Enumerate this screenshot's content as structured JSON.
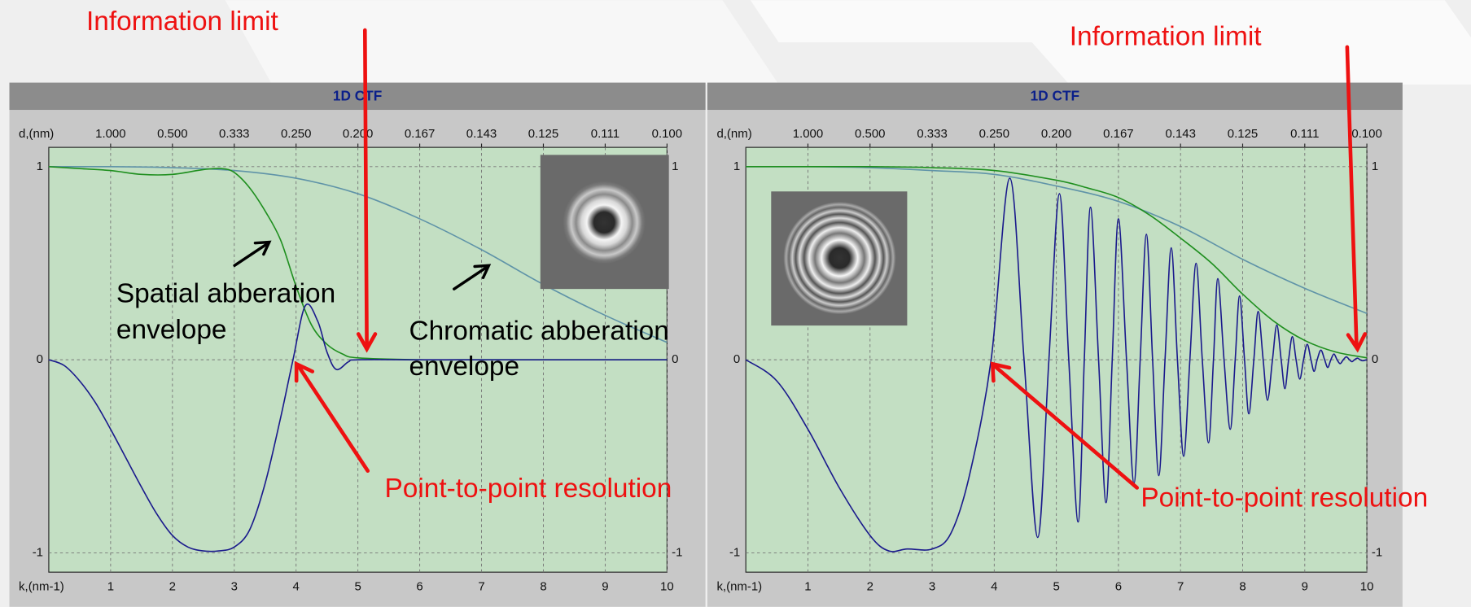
{
  "chart_data": [
    {
      "type": "line",
      "title": "1D CTF",
      "x_label": "k,(nm-1)",
      "x2_label": "d,(nm)",
      "xlim": [
        0,
        10
      ],
      "xticks": [
        1,
        2,
        3,
        4,
        5,
        6,
        7,
        8,
        9,
        10
      ],
      "x2ticks": [
        {
          "value": 1,
          "label": "1.000"
        },
        {
          "value": 2,
          "label": "0.500"
        },
        {
          "value": 3,
          "label": "0.333"
        },
        {
          "value": 4,
          "label": "0.250"
        },
        {
          "value": 5,
          "label": "0.200"
        },
        {
          "value": 6,
          "label": "0.167"
        },
        {
          "value": 7,
          "label": "0.143"
        },
        {
          "value": 8,
          "label": "0.125"
        },
        {
          "value": 9,
          "label": "0.111"
        },
        {
          "value": 10,
          "label": "0.100"
        }
      ],
      "ylim": [
        -1.1,
        1.1
      ],
      "yticks": [
        -1,
        0,
        1
      ],
      "grid": true,
      "background": "#c3dfc3",
      "series": [
        {
          "color": "#5f93a8",
          "x": [
            0,
            1,
            2,
            3,
            4,
            5,
            6,
            7,
            8,
            9,
            10
          ],
          "values": [
            1,
            1,
            0.995,
            0.98,
            0.94,
            0.86,
            0.73,
            0.57,
            0.39,
            0.23,
            0.09
          ]
        },
        {
          "color": "#1f8f1f",
          "x": [
            0,
            0.5,
            1,
            1.5,
            2,
            2.5,
            2.8,
            3,
            3.25,
            3.5,
            3.75,
            4,
            4.25,
            4.5,
            4.75,
            5,
            6,
            7,
            8,
            9,
            10
          ],
          "values": [
            1,
            0.99,
            0.98,
            0.96,
            0.96,
            0.985,
            0.99,
            0.97,
            0.89,
            0.77,
            0.62,
            0.38,
            0.18,
            0.08,
            0.03,
            0.01,
            0,
            0,
            0,
            0,
            0
          ]
        },
        {
          "color": "#1a1a8c",
          "x": [
            0,
            0.25,
            0.5,
            0.75,
            1,
            1.25,
            1.5,
            1.75,
            2,
            2.25,
            2.5,
            2.75,
            3,
            3.25,
            3.5,
            3.75,
            3.95,
            4.15,
            4.35,
            4.5,
            4.65,
            4.85,
            5,
            6,
            7,
            8,
            9,
            10
          ],
          "values": [
            0,
            -0.03,
            -0.11,
            -0.22,
            -0.36,
            -0.51,
            -0.66,
            -0.8,
            -0.91,
            -0.97,
            -0.99,
            -0.99,
            -0.97,
            -0.88,
            -0.64,
            -0.3,
            0,
            0.28,
            0.2,
            0.04,
            -0.05,
            -0.01,
            0,
            0,
            0,
            0,
            0,
            0
          ]
        }
      ],
      "annotations": [
        "Information limit",
        "Spatial abberation",
        "envelope",
        "Chromatic abberation",
        "envelope",
        "Point-to-point resolution"
      ]
    },
    {
      "type": "line",
      "title": "1D CTF",
      "x_label": "k,(nm-1)",
      "x2_label": "d,(nm)",
      "xlim": [
        0,
        10
      ],
      "xticks": [
        1,
        2,
        3,
        4,
        5,
        6,
        7,
        8,
        9,
        10
      ],
      "x2ticks": [
        {
          "value": 1,
          "label": "1.000"
        },
        {
          "value": 2,
          "label": "0.500"
        },
        {
          "value": 3,
          "label": "0.333"
        },
        {
          "value": 4,
          "label": "0.250"
        },
        {
          "value": 5,
          "label": "0.200"
        },
        {
          "value": 6,
          "label": "0.167"
        },
        {
          "value": 7,
          "label": "0.143"
        },
        {
          "value": 8,
          "label": "0.125"
        },
        {
          "value": 9,
          "label": "0.111"
        },
        {
          "value": 10,
          "label": "0.100"
        }
      ],
      "ylim": [
        -1.1,
        1.1
      ],
      "yticks": [
        -1,
        0,
        1
      ],
      "grid": true,
      "background": "#c3dfc3",
      "series": [
        {
          "color": "#5f93a8",
          "x": [
            0,
            1,
            2,
            3,
            4,
            5,
            6,
            7,
            8,
            9,
            10
          ],
          "values": [
            1,
            1,
            0.995,
            0.98,
            0.96,
            0.9,
            0.82,
            0.69,
            0.52,
            0.37,
            0.24
          ]
        },
        {
          "color": "#1f8f1f",
          "x": [
            0,
            1,
            2,
            3,
            4,
            5,
            5.5,
            6,
            6.5,
            7,
            7.5,
            8,
            8.5,
            9,
            9.5,
            10
          ],
          "values": [
            1,
            1,
            1,
            0.995,
            0.98,
            0.93,
            0.89,
            0.84,
            0.75,
            0.63,
            0.5,
            0.34,
            0.2,
            0.1,
            0.04,
            0.01
          ]
        },
        {
          "color": "#1a1a8c",
          "x": [
            0,
            0.5,
            1,
            1.5,
            2,
            2.3,
            2.6,
            3,
            3.3,
            3.6,
            3.95,
            4.25,
            4.48,
            4.7,
            4.88,
            5.05,
            5.2,
            5.35,
            5.45,
            5.55,
            5.68,
            5.8,
            5.9,
            6.0,
            6.13,
            6.25,
            6.35,
            6.45,
            6.55,
            6.65,
            6.75,
            6.85,
            6.95,
            7.05,
            7.15,
            7.25,
            7.35,
            7.45,
            7.53,
            7.6,
            7.7,
            7.8,
            7.88,
            7.95,
            8.03,
            8.1,
            8.18,
            8.25,
            8.33,
            8.4,
            8.48,
            8.55,
            8.62,
            8.68,
            8.74,
            8.8,
            8.86,
            8.92,
            8.98,
            9.04,
            9.1,
            9.15,
            9.2,
            9.26,
            9.32,
            9.37,
            9.42,
            9.47,
            9.52,
            9.57,
            9.62,
            9.67,
            9.72,
            9.76,
            9.8,
            9.85,
            9.89,
            9.93,
            10
          ],
          "values": [
            0,
            -0.11,
            -0.36,
            -0.66,
            -0.91,
            -0.99,
            -0.98,
            -0.98,
            -0.9,
            -0.6,
            0,
            0.94,
            0,
            -0.92,
            0,
            0.86,
            0,
            -0.84,
            0,
            0.79,
            0,
            -0.74,
            0,
            0.73,
            0,
            -0.64,
            0,
            0.65,
            0,
            -0.6,
            0,
            0.58,
            0,
            -0.5,
            0,
            0.5,
            0,
            -0.43,
            0,
            0.42,
            0,
            -0.36,
            0,
            0.33,
            0,
            -0.28,
            0,
            0.25,
            0,
            -0.21,
            0,
            0.18,
            0,
            -0.15,
            0,
            0.12,
            0,
            -0.1,
            0,
            0.08,
            0,
            -0.06,
            0,
            0.05,
            0,
            -0.04,
            0,
            0.03,
            0,
            -0.02,
            0,
            0.015,
            0,
            -0.01,
            0,
            0.008,
            0,
            -0.005,
            0
          ]
        }
      ],
      "annotations": [
        "Information limit",
        "Point-to-point resolution"
      ]
    }
  ]
}
